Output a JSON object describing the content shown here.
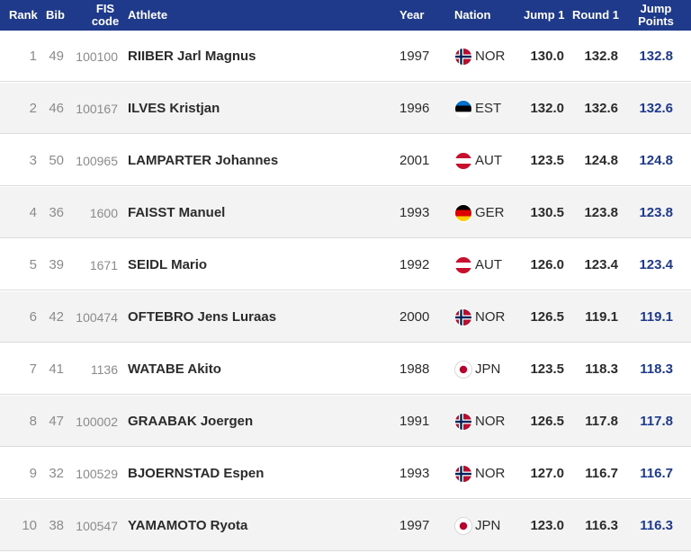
{
  "header": {
    "rank": "Rank",
    "bib": "Bib",
    "fis_line1": "FIS",
    "fis_line2": "code",
    "athlete": "Athlete",
    "year": "Year",
    "nation": "Nation",
    "jump1": "Jump 1",
    "round1": "Round 1",
    "points_line1": "Jump",
    "points_line2": "Points"
  },
  "colors": {
    "header_bg": "#1f3a8a",
    "points_text": "#1f3a8a",
    "alt_row_bg": "#f3f3f3"
  },
  "rows": [
    {
      "rank": "1",
      "bib": "49",
      "fis": "100100",
      "athlete": "RIIBER Jarl Magnus",
      "year": "1997",
      "flag_icon": "norway-flag-icon",
      "nation": "NOR",
      "jump1": "130.0",
      "round1": "132.8",
      "points": "132.8"
    },
    {
      "rank": "2",
      "bib": "46",
      "fis": "100167",
      "athlete": "ILVES Kristjan",
      "year": "1996",
      "flag_icon": "estonia-flag-icon",
      "nation": "EST",
      "jump1": "132.0",
      "round1": "132.6",
      "points": "132.6"
    },
    {
      "rank": "3",
      "bib": "50",
      "fis": "100965",
      "athlete": "LAMPARTER Johannes",
      "year": "2001",
      "flag_icon": "austria-flag-icon",
      "nation": "AUT",
      "jump1": "123.5",
      "round1": "124.8",
      "points": "124.8"
    },
    {
      "rank": "4",
      "bib": "36",
      "fis": "1600",
      "athlete": "FAISST Manuel",
      "year": "1993",
      "flag_icon": "germany-flag-icon",
      "nation": "GER",
      "jump1": "130.5",
      "round1": "123.8",
      "points": "123.8"
    },
    {
      "rank": "5",
      "bib": "39",
      "fis": "1671",
      "athlete": "SEIDL Mario",
      "year": "1992",
      "flag_icon": "austria-flag-icon",
      "nation": "AUT",
      "jump1": "126.0",
      "round1": "123.4",
      "points": "123.4"
    },
    {
      "rank": "6",
      "bib": "42",
      "fis": "100474",
      "athlete": "OFTEBRO Jens Luraas",
      "year": "2000",
      "flag_icon": "norway-flag-icon",
      "nation": "NOR",
      "jump1": "126.5",
      "round1": "119.1",
      "points": "119.1"
    },
    {
      "rank": "7",
      "bib": "41",
      "fis": "1136",
      "athlete": "WATABE Akito",
      "year": "1988",
      "flag_icon": "japan-flag-icon",
      "nation": "JPN",
      "jump1": "123.5",
      "round1": "118.3",
      "points": "118.3"
    },
    {
      "rank": "8",
      "bib": "47",
      "fis": "100002",
      "athlete": "GRAABAK Joergen",
      "year": "1991",
      "flag_icon": "norway-flag-icon",
      "nation": "NOR",
      "jump1": "126.5",
      "round1": "117.8",
      "points": "117.8"
    },
    {
      "rank": "9",
      "bib": "32",
      "fis": "100529",
      "athlete": "BJOERNSTAD Espen",
      "year": "1993",
      "flag_icon": "norway-flag-icon",
      "nation": "NOR",
      "jump1": "127.0",
      "round1": "116.7",
      "points": "116.7"
    },
    {
      "rank": "10",
      "bib": "38",
      "fis": "100547",
      "athlete": "YAMAMOTO Ryota",
      "year": "1997",
      "flag_icon": "japan-flag-icon",
      "nation": "JPN",
      "jump1": "123.0",
      "round1": "116.3",
      "points": "116.3"
    }
  ]
}
